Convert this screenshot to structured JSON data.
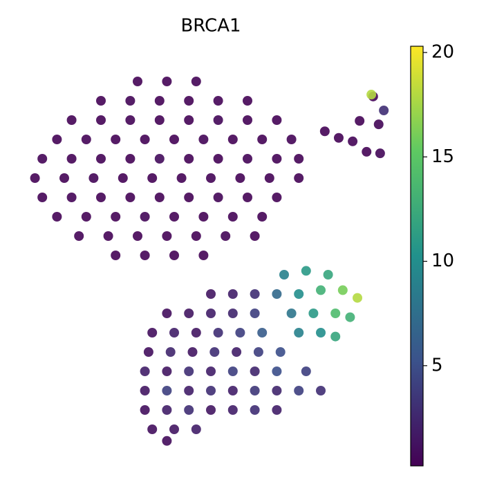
{
  "chart_data": {
    "type": "scatter",
    "title": "BRCA1",
    "colormap": "viridis",
    "xlim": [
      0,
      100
    ],
    "ylim": [
      0,
      100
    ],
    "clim": [
      0.2,
      20.3
    ],
    "cticks": [
      5,
      10,
      15,
      20
    ],
    "x": [
      30,
      38,
      46,
      20,
      28,
      36,
      44,
      52,
      60,
      12,
      20,
      28,
      36,
      44,
      52,
      60,
      68,
      8,
      16,
      24,
      32,
      40,
      48,
      56,
      64,
      72,
      4,
      12,
      20,
      28,
      36,
      44,
      52,
      60,
      68,
      74,
      2,
      10,
      18,
      26,
      34,
      42,
      50,
      58,
      66,
      74,
      4,
      12,
      20,
      28,
      36,
      44,
      52,
      60,
      68,
      8,
      16,
      24,
      32,
      40,
      48,
      56,
      64,
      14,
      22,
      30,
      38,
      46,
      54,
      62,
      24,
      32,
      40,
      48,
      81.1,
      84.9,
      94.3,
      97.2,
      95.8,
      90.6,
      88.7,
      92.5,
      96.2,
      93.8,
      50,
      56,
      62,
      38,
      44,
      50,
      56,
      62,
      34,
      40,
      46,
      52,
      58,
      64,
      33,
      39,
      45,
      51,
      57,
      63,
      69,
      32,
      38,
      44,
      50,
      56,
      62,
      68,
      76,
      32,
      38,
      44,
      50,
      56,
      62,
      68,
      74,
      80,
      32,
      38,
      44,
      50,
      56,
      62,
      68,
      34,
      40,
      46,
      38,
      70,
      76,
      82,
      68,
      74,
      80,
      86,
      90,
      72,
      78,
      84,
      88,
      74,
      80,
      84
    ],
    "y": [
      95,
      95,
      95,
      90,
      90,
      90,
      90,
      90,
      90,
      85,
      85,
      85,
      85,
      85,
      85,
      85,
      85,
      80,
      80,
      80,
      80,
      80,
      80,
      80,
      80,
      80,
      75,
      75,
      75,
      75,
      75,
      75,
      75,
      75,
      75,
      75,
      70,
      70,
      70,
      70,
      70,
      70,
      70,
      70,
      70,
      70,
      65,
      65,
      65,
      65,
      65,
      65,
      65,
      65,
      65,
      60,
      60,
      60,
      60,
      60,
      60,
      60,
      60,
      55,
      55,
      55,
      55,
      55,
      55,
      55,
      50,
      50,
      50,
      50,
      82.1,
      80.4,
      91.1,
      87.5,
      83.9,
      84.8,
      79.5,
      76.8,
      76.4,
      91.6,
      40,
      40,
      40,
      35,
      35,
      35,
      35,
      35,
      30,
      30,
      30,
      30,
      30,
      30,
      25,
      25,
      25,
      25,
      25,
      25,
      25,
      20,
      20,
      20,
      20,
      20,
      20,
      20,
      20,
      15,
      15,
      15,
      15,
      15,
      15,
      15,
      15,
      15,
      10,
      10,
      10,
      10,
      10,
      10,
      10,
      5,
      5,
      5,
      2,
      45,
      46,
      45,
      40,
      40,
      41,
      41,
      39,
      35,
      35,
      35,
      34,
      30,
      30,
      29
    ],
    "values": [
      0.3,
      0.3,
      0.4,
      0.3,
      0.5,
      0.3,
      0.3,
      0.4,
      0.3,
      0.3,
      0.3,
      0.4,
      0.3,
      0.3,
      0.6,
      0.3,
      0.3,
      0.3,
      0.4,
      0.3,
      0.3,
      0.3,
      0.5,
      0.3,
      0.3,
      0.4,
      0.4,
      0.3,
      0.3,
      0.3,
      0.8,
      0.3,
      0.3,
      0.4,
      0.3,
      0.3,
      0.3,
      0.3,
      0.5,
      0.3,
      0.3,
      0.3,
      0.4,
      0.3,
      0.3,
      0.3,
      0.3,
      0.4,
      0.3,
      0.3,
      0.3,
      0.3,
      0.5,
      0.3,
      0.3,
      0.3,
      0.3,
      0.3,
      0.6,
      0.3,
      0.3,
      0.4,
      0.3,
      0.4,
      0.3,
      0.3,
      0.3,
      0.3,
      0.5,
      0.3,
      0.3,
      0.4,
      0.3,
      0.3,
      0.3,
      0.3,
      0.4,
      3,
      0.5,
      0.3,
      0.4,
      0.3,
      0.6,
      18,
      1.5,
      2,
      3,
      1,
      1.5,
      2,
      2.5,
      4,
      1,
      2,
      1.5,
      3,
      4,
      6,
      1,
      2.5,
      1.5,
      3,
      2,
      4,
      5,
      2,
      1.5,
      3,
      2,
      4,
      2.5,
      5,
      4,
      1.5,
      4,
      2,
      3,
      2,
      3.5,
      2.5,
      4,
      3,
      1,
      2,
      3,
      1.5,
      2,
      3,
      2,
      1,
      1.5,
      2,
      0.8,
      9,
      11,
      12,
      7,
      10,
      13,
      16,
      18,
      8,
      11,
      14,
      13,
      9,
      10,
      12
    ]
  }
}
